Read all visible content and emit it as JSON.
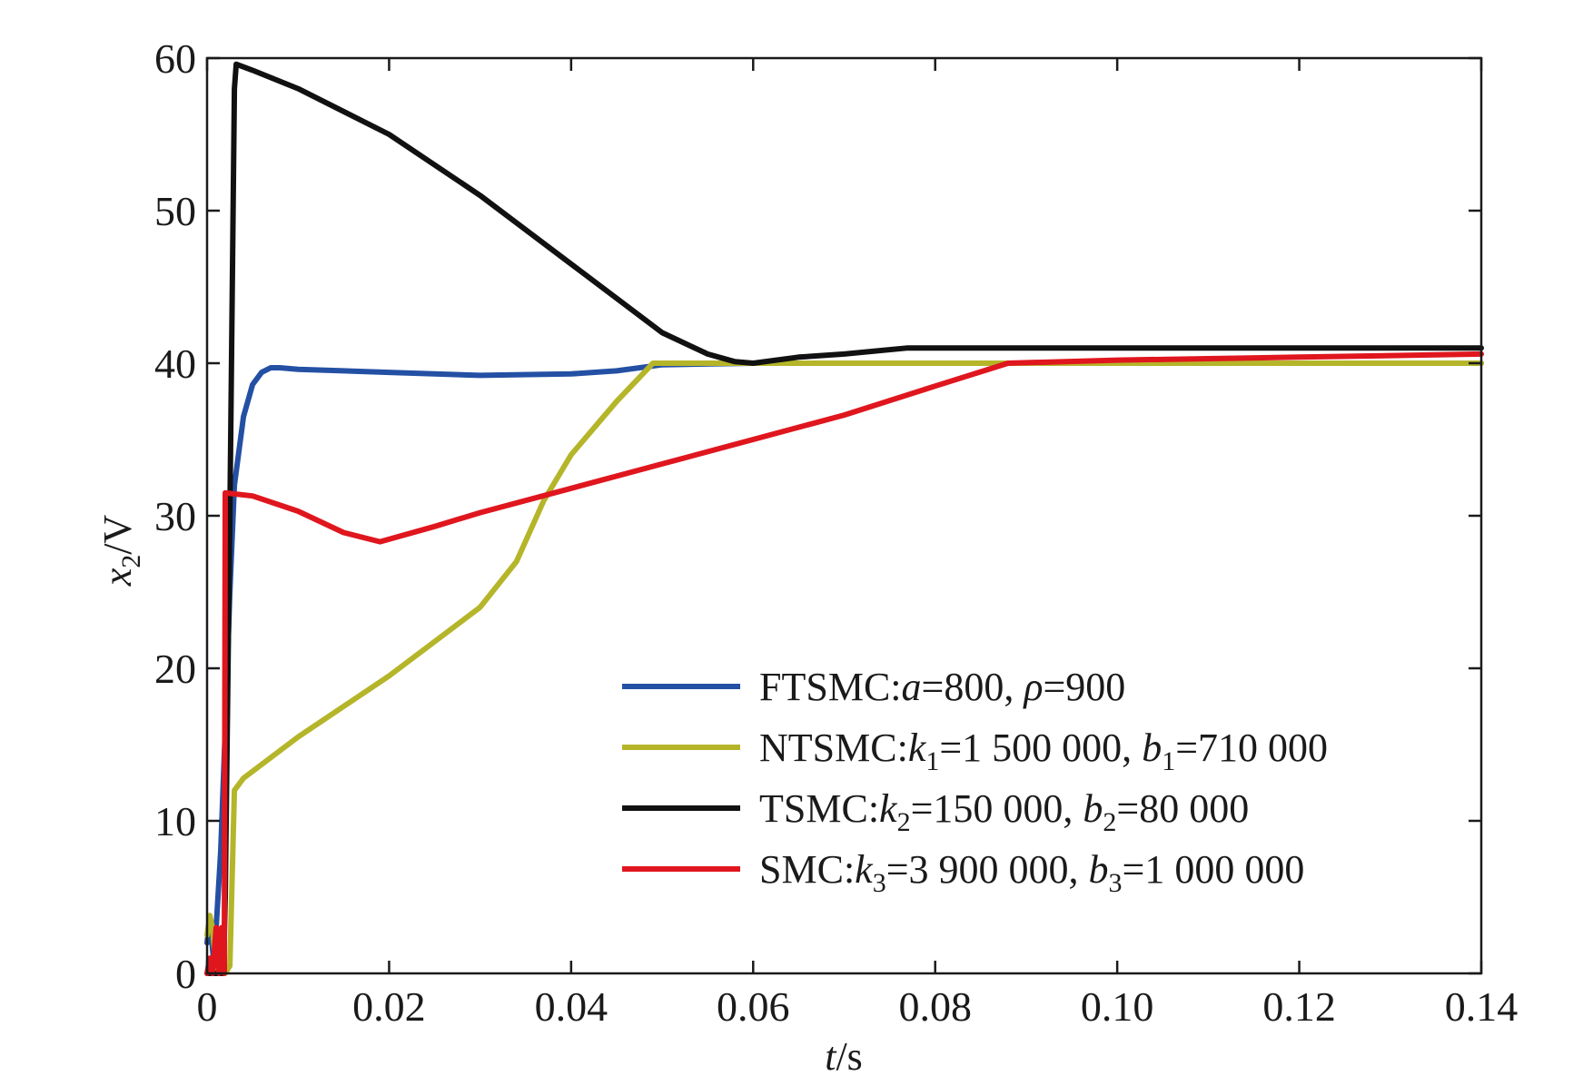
{
  "chart_data": {
    "type": "line",
    "xlabel": "t/s",
    "ylabel": "x2/V",
    "xlim": [
      0,
      0.14
    ],
    "ylim": [
      0,
      60
    ],
    "xticks": [
      0,
      0.02,
      0.04,
      0.06,
      0.08,
      0.1,
      0.12,
      0.14
    ],
    "xtick_labels": [
      "0",
      "0.02",
      "0.04",
      "0.06",
      "0.08",
      "0.10",
      "0.12",
      "0.14"
    ],
    "yticks": [
      0,
      10,
      20,
      30,
      40,
      50,
      60
    ],
    "ytick_labels": [
      "0",
      "10",
      "20",
      "30",
      "40",
      "50",
      "60"
    ],
    "grid": false,
    "legend_position": "lower-right",
    "series": [
      {
        "name": "FTSMC:a=800, ρ=900",
        "legend_parts": [
          {
            "t": "FTSMC:",
            "s": "n"
          },
          {
            "t": "a",
            "s": "i"
          },
          {
            "t": "=800, ",
            "s": "n"
          },
          {
            "t": "ρ",
            "s": "i"
          },
          {
            "t": "=900",
            "s": "n"
          }
        ],
        "color": "#2450a4",
        "x": [
          0,
          0.0003,
          0.0007,
          0.001,
          0.0015,
          0.002,
          0.0025,
          0.003,
          0.004,
          0.005,
          0.006,
          0.007,
          0.008,
          0.01,
          0.015,
          0.02,
          0.03,
          0.04,
          0.045,
          0.05,
          0.06,
          0.07,
          0.08,
          0.09,
          0.1,
          0.12,
          0.14
        ],
        "y": [
          2,
          3.5,
          1,
          3,
          8,
          16,
          25,
          32,
          36.5,
          38.6,
          39.4,
          39.7,
          39.7,
          39.6,
          39.5,
          39.4,
          39.2,
          39.3,
          39.5,
          39.9,
          40,
          40,
          40,
          40,
          40,
          40,
          40
        ]
      },
      {
        "name": "NTSMC:k1=1 500 000, b1=710 000",
        "legend_parts": [
          {
            "t": "NTSMC:",
            "s": "n"
          },
          {
            "t": "k",
            "s": "i"
          },
          {
            "t": "1",
            "s": "sub"
          },
          {
            "t": "=1 500 000, ",
            "s": "n"
          },
          {
            "t": "b",
            "s": "i"
          },
          {
            "t": "1",
            "s": "sub"
          },
          {
            "t": "=710 000",
            "s": "n"
          }
        ],
        "color": "#b5b52a",
        "x": [
          0,
          0.0003,
          0.0006,
          0.001,
          0.0015,
          0.002,
          0.0025,
          0.003,
          0.004,
          0.01,
          0.02,
          0.03,
          0.034,
          0.037,
          0.04,
          0.045,
          0.049,
          0.06,
          0.08,
          0.1,
          0.12,
          0.14
        ],
        "y": [
          2.5,
          3.8,
          3,
          0,
          0,
          0,
          0.5,
          12,
          12.8,
          15.5,
          19.5,
          24,
          27,
          31,
          34,
          37.5,
          40,
          40,
          40,
          40,
          40,
          40
        ]
      },
      {
        "name": "TSMC:k2=150 000, b2=80 000",
        "legend_parts": [
          {
            "t": "TSMC:",
            "s": "n"
          },
          {
            "t": "k",
            "s": "i"
          },
          {
            "t": "2",
            "s": "sub"
          },
          {
            "t": "=150 000, ",
            "s": "n"
          },
          {
            "t": "b",
            "s": "i"
          },
          {
            "t": "2",
            "s": "sub"
          },
          {
            "t": "=80 000",
            "s": "n"
          }
        ],
        "color": "#111111",
        "x": [
          0,
          0.001,
          0.0018,
          0.002,
          0.0025,
          0.003,
          0.0032,
          0.005,
          0.01,
          0.02,
          0.03,
          0.04,
          0.05,
          0.055,
          0.058,
          0.06,
          0.065,
          0.07,
          0.077,
          0.08,
          0.1,
          0.12,
          0.14
        ],
        "y": [
          0,
          0,
          0,
          5,
          30,
          58,
          59.6,
          59.2,
          58,
          55,
          51,
          46.5,
          42,
          40.6,
          40.1,
          40,
          40.4,
          40.6,
          41,
          41,
          41,
          41,
          41
        ]
      },
      {
        "name": "SMC:k3=3 900 000, b3=1 000 000",
        "legend_parts": [
          {
            "t": "SMC:",
            "s": "n"
          },
          {
            "t": "k",
            "s": "i"
          },
          {
            "t": "3",
            "s": "sub"
          },
          {
            "t": "=3 900 000, ",
            "s": "n"
          },
          {
            "t": "b",
            "s": "i"
          },
          {
            "t": "3",
            "s": "sub"
          },
          {
            "t": "=1 000 000",
            "s": "n"
          }
        ],
        "color": "#e0161e",
        "x": [
          0,
          0.0003,
          0.0006,
          0.001,
          0.0013,
          0.0016,
          0.0019,
          0.002,
          0.005,
          0.01,
          0.015,
          0.019,
          0.025,
          0.03,
          0.04,
          0.05,
          0.06,
          0.07,
          0.08,
          0.088,
          0.1,
          0.12,
          0.14
        ],
        "y": [
          0,
          1,
          0,
          3,
          0,
          3,
          0,
          31.5,
          31.3,
          30.3,
          28.9,
          28.3,
          29.3,
          30.2,
          31.8,
          33.4,
          35,
          36.6,
          38.5,
          40,
          40.2,
          40.4,
          40.6
        ]
      }
    ]
  }
}
